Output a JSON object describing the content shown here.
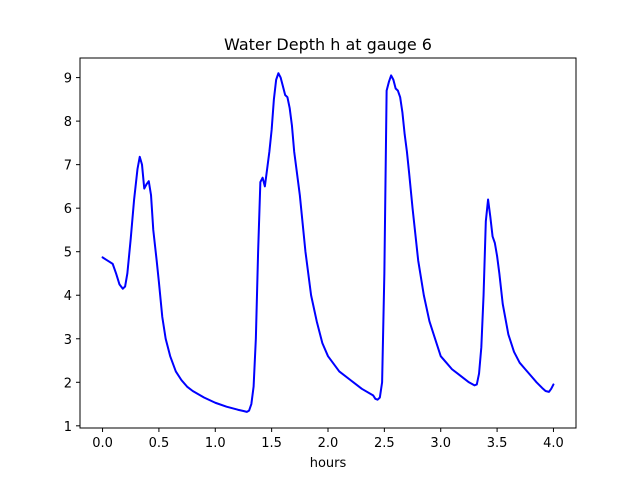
{
  "chart_data": {
    "type": "line",
    "title": "Water Depth h at gauge 6",
    "xlabel": "hours",
    "ylabel": "",
    "xlim": [
      -0.2,
      4.2
    ],
    "ylim": [
      0.95,
      9.45
    ],
    "xticks": [
      0.0,
      0.5,
      1.0,
      1.5,
      2.0,
      2.5,
      3.0,
      3.5,
      4.0
    ],
    "xtick_labels": [
      "0.0",
      "0.5",
      "1.0",
      "1.5",
      "2.0",
      "2.5",
      "3.0",
      "3.5",
      "4.0"
    ],
    "yticks": [
      1,
      2,
      3,
      4,
      5,
      6,
      7,
      8,
      9
    ],
    "ytick_labels": [
      "1",
      "2",
      "3",
      "4",
      "5",
      "6",
      "7",
      "8",
      "9"
    ],
    "grid": false,
    "legend": "none",
    "series": [
      {
        "color": "#0000ff",
        "x": [
          0.0,
          0.03,
          0.06,
          0.09,
          0.12,
          0.15,
          0.18,
          0.2,
          0.22,
          0.25,
          0.28,
          0.31,
          0.33,
          0.35,
          0.37,
          0.39,
          0.41,
          0.43,
          0.45,
          0.48,
          0.5,
          0.53,
          0.56,
          0.6,
          0.65,
          0.7,
          0.75,
          0.8,
          0.9,
          1.0,
          1.1,
          1.2,
          1.25,
          1.28,
          1.3,
          1.32,
          1.34,
          1.36,
          1.38,
          1.4,
          1.42,
          1.44,
          1.46,
          1.48,
          1.5,
          1.52,
          1.54,
          1.56,
          1.58,
          1.6,
          1.62,
          1.64,
          1.66,
          1.68,
          1.7,
          1.72,
          1.75,
          1.8,
          1.85,
          1.9,
          1.95,
          2.0,
          2.1,
          2.2,
          2.3,
          2.4,
          2.42,
          2.44,
          2.46,
          2.48,
          2.5,
          2.52,
          2.54,
          2.56,
          2.58,
          2.6,
          2.62,
          2.64,
          2.66,
          2.68,
          2.7,
          2.72,
          2.75,
          2.8,
          2.85,
          2.9,
          2.95,
          3.0,
          3.05,
          3.1,
          3.15,
          3.2,
          3.25,
          3.3,
          3.32,
          3.34,
          3.36,
          3.38,
          3.4,
          3.42,
          3.44,
          3.46,
          3.48,
          3.5,
          3.52,
          3.55,
          3.6,
          3.65,
          3.7,
          3.75,
          3.8,
          3.85,
          3.9,
          3.93,
          3.96,
          3.98,
          4.0
        ],
        "y": [
          4.87,
          4.82,
          4.77,
          4.72,
          4.5,
          4.25,
          4.15,
          4.2,
          4.5,
          5.3,
          6.2,
          6.9,
          7.18,
          7.0,
          6.45,
          6.55,
          6.62,
          6.3,
          5.5,
          4.8,
          4.3,
          3.5,
          3.0,
          2.6,
          2.25,
          2.05,
          1.9,
          1.8,
          1.65,
          1.53,
          1.44,
          1.37,
          1.34,
          1.32,
          1.35,
          1.5,
          1.9,
          3.0,
          5.0,
          6.6,
          6.7,
          6.5,
          6.9,
          7.3,
          7.8,
          8.5,
          8.95,
          9.1,
          9.0,
          8.8,
          8.6,
          8.55,
          8.3,
          7.9,
          7.3,
          6.9,
          6.3,
          5.0,
          4.0,
          3.4,
          2.9,
          2.6,
          2.25,
          2.05,
          1.85,
          1.7,
          1.62,
          1.6,
          1.65,
          2.0,
          4.5,
          8.7,
          8.9,
          9.05,
          8.95,
          8.75,
          8.7,
          8.55,
          8.2,
          7.7,
          7.3,
          6.8,
          6.0,
          4.8,
          4.0,
          3.4,
          3.0,
          2.6,
          2.45,
          2.3,
          2.2,
          2.1,
          2.0,
          1.93,
          1.95,
          2.2,
          2.8,
          4.0,
          5.7,
          6.2,
          5.8,
          5.35,
          5.2,
          4.9,
          4.5,
          3.8,
          3.1,
          2.7,
          2.45,
          2.3,
          2.15,
          2.0,
          1.87,
          1.8,
          1.78,
          1.85,
          1.95
        ]
      }
    ]
  }
}
